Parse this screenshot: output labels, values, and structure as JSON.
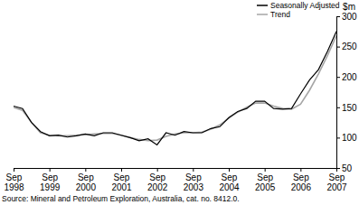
{
  "chart_data": {
    "type": "line",
    "y_label": "$m",
    "annotations": [
      "Source: Mineral and Petroleum Exploration, Australia, cat. no. 8412.0."
    ],
    "categories": [
      "Sep 1998",
      null,
      null,
      null,
      "Sep 1999",
      null,
      null,
      null,
      "Sep 2000",
      null,
      null,
      null,
      "Sep 2001",
      null,
      null,
      null,
      "Sep 2002",
      null,
      null,
      null,
      "Sep 2003",
      null,
      null,
      null,
      "Sep 2004",
      null,
      null,
      null,
      "Sep 2005",
      null,
      null,
      null,
      "Sep 2006",
      null,
      null,
      null,
      "Sep 2007"
    ],
    "series": [
      {
        "name": "Seasonally Adjusted",
        "color": "#000000",
        "values": [
          152,
          148,
          125,
          110,
          103,
          104,
          101,
          103,
          106,
          103,
          108,
          108,
          104,
          100,
          95,
          98,
          88,
          108,
          104,
          110,
          108,
          108,
          115,
          118,
          133,
          143,
          148,
          160,
          160,
          148,
          147,
          148,
          172,
          195,
          212,
          242,
          275
        ]
      },
      {
        "name": "Trend",
        "color": "#a6a6a6",
        "values": [
          150,
          145,
          125,
          108,
          104,
          103,
          103,
          104,
          105,
          106,
          107,
          107,
          104,
          100,
          97,
          95,
          96,
          102,
          106,
          108,
          108,
          109,
          114,
          121,
          132,
          142,
          150,
          157,
          157,
          152,
          148,
          147,
          155,
          178,
          205,
          235,
          268
        ]
      }
    ],
    "ylim": [
      50,
      300
    ],
    "yticks": [
      50,
      100,
      150,
      200,
      250,
      300
    ],
    "legend": "upper right"
  }
}
